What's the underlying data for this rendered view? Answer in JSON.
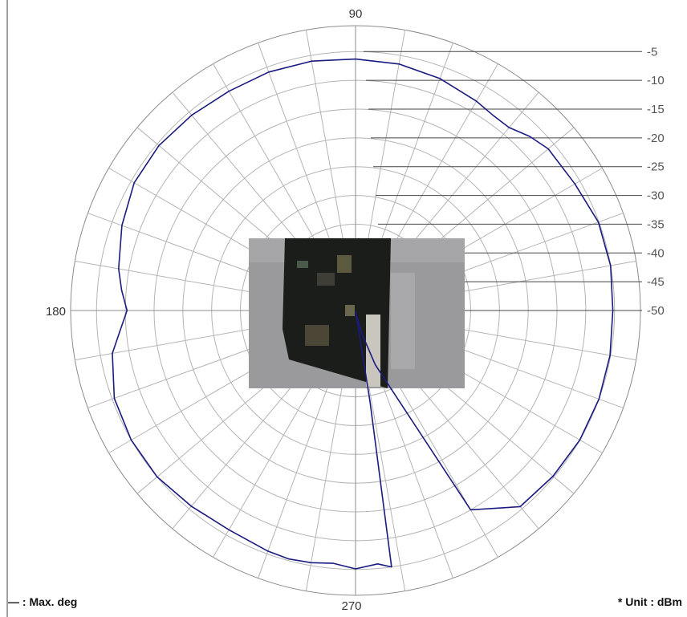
{
  "chart_data": {
    "type": "polar-line",
    "angle_labels": [
      {
        "angle": 90,
        "text": "90"
      },
      {
        "angle": 180,
        "text": "180"
      },
      {
        "angle": 270,
        "text": "270"
      }
    ],
    "radial_ticks": [
      "-5",
      "-10",
      "-15",
      "-20",
      "-25",
      "-30",
      "-35",
      "-40",
      "-45",
      "-50"
    ],
    "radial_tick_values": [
      -5,
      -10,
      -15,
      -20,
      -25,
      -30,
      -35,
      -40,
      -45,
      -50
    ],
    "r_range": [
      -50,
      -0.5
    ],
    "angular_grid_step_deg": 10,
    "grid": true,
    "series": [
      {
        "color": "#1a1a80",
        "theta_deg": [
          0,
          10,
          20,
          30,
          40,
          45,
          50,
          55,
          60,
          70,
          80,
          90,
          100,
          110,
          120,
          130,
          140,
          150,
          160,
          170,
          175,
          180,
          185,
          190,
          200,
          210,
          220,
          230,
          240,
          250,
          255,
          260,
          265,
          270,
          275,
          278,
          279,
          280,
          282,
          285,
          290,
          300,
          310,
          320,
          330,
          340,
          350,
          360
        ],
        "r_db": [
          -5.3,
          -5.0,
          -5.1,
          -6.0,
          -6.3,
          -7.2,
          -8.5,
          -8.5,
          -8.0,
          -7.1,
          -6.5,
          -6.3,
          -6.0,
          -5.9,
          -6.0,
          -5.7,
          -5.4,
          -5.6,
          -6.8,
          -8.2,
          -9.2,
          -10.3,
          -8.9,
          -7.1,
          -5.4,
          -5.0,
          -5.0,
          -5.6,
          -6.0,
          -5.5,
          -5.3,
          -5.5,
          -5.9,
          -5.1,
          -5.8,
          -5.0,
          -34.0,
          -49.8,
          -49.0,
          -46.0,
          -40.0,
          -10.0,
          -5.5,
          -5.2,
          -5.0,
          -5.0,
          -5.1,
          -5.3
        ]
      }
    ],
    "legend": "bottom-left",
    "legend_text": "— : Max. deg",
    "unit_note": "* Unit :  dBm"
  },
  "colors": {
    "grid": "#b4b4b4",
    "axis": "#8c8c8c",
    "series": "#1a1a80",
    "photo_bg": "#9a9a9c",
    "board": "#1b1d1a"
  },
  "inset_photo": {
    "description_icon": "circuit-board-photo"
  }
}
